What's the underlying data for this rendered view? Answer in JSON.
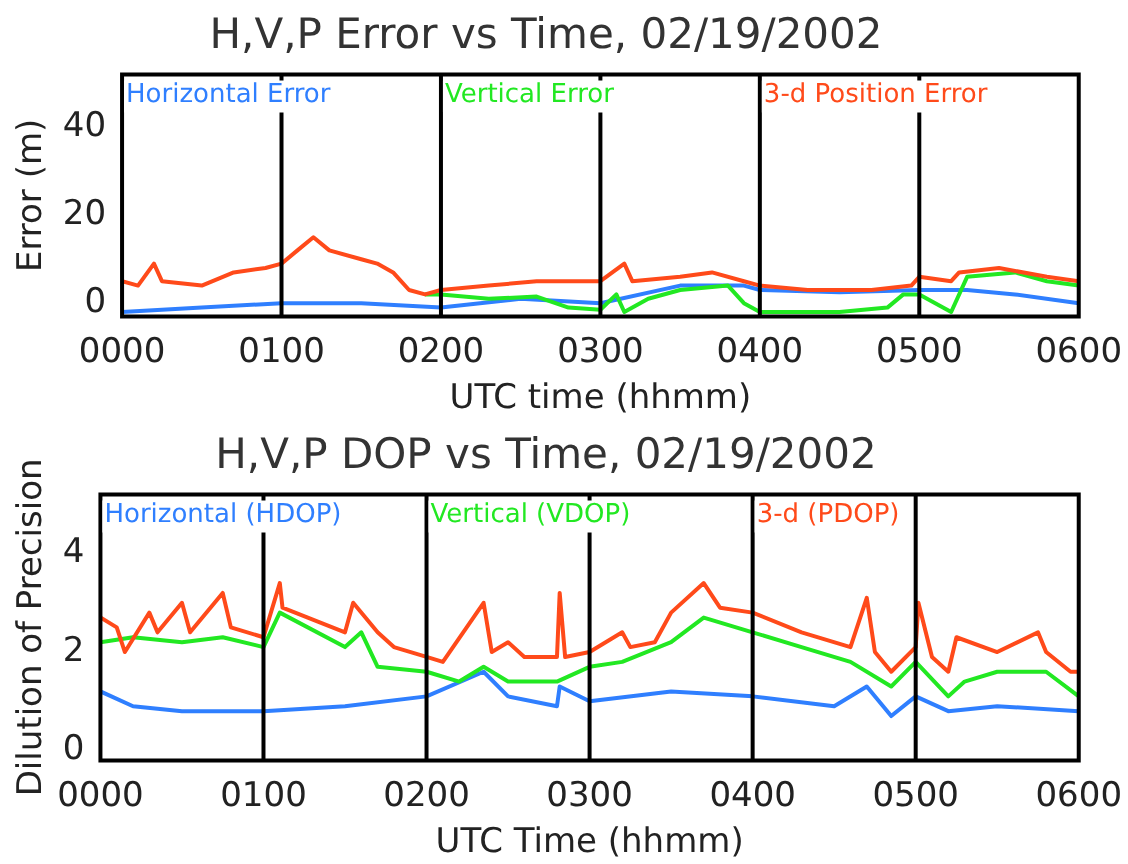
{
  "chart_data": [
    {
      "type": "line",
      "title": "H,V,P Error vs Time, 02/19/2002",
      "xlabel": "UTC time (hhmm)",
      "ylabel": "Error (m)",
      "xlim": [
        "2002-02-19T00:00",
        "2002-02-19T06:00"
      ],
      "xticks": [
        {
          "value": "2002-02-19T00:00",
          "label": "0000"
        },
        {
          "value": "2002-02-19T01:00",
          "label": "0100"
        },
        {
          "value": "2002-02-19T02:00",
          "label": "0200"
        },
        {
          "value": "2002-02-19T03:00",
          "label": "0300"
        },
        {
          "value": "2002-02-19T04:00",
          "label": "0400"
        },
        {
          "value": "2002-02-19T05:00",
          "label": "0500"
        },
        {
          "value": "2002-02-19T06:00",
          "label": "0600"
        }
      ],
      "ylim": [
        -3,
        52
      ],
      "yticks": [
        0,
        20,
        40
      ],
      "legend": "top",
      "grid": false,
      "ref_lines": [
        {
          "axis": "x",
          "value": "2002-02-19T01:00",
          "color": "#000000"
        },
        {
          "axis": "x",
          "value": "2002-02-19T02:00",
          "color": "#000000"
        },
        {
          "axis": "x",
          "value": "2002-02-19T03:00",
          "color": "#000000"
        },
        {
          "axis": "x",
          "value": "2002-02-19T04:00",
          "color": "#000000"
        },
        {
          "axis": "x",
          "value": "2002-02-19T05:00",
          "color": "#000000"
        }
      ],
      "series": [
        {
          "name": "Horizontal Error",
          "color": "#2f7fff",
          "x": [
            "2002-02-19T00:00",
            "2002-02-19T00:30",
            "2002-02-19T01:00",
            "2002-02-19T01:30",
            "2002-02-19T02:00",
            "2002-02-19T02:30",
            "2002-02-19T03:00",
            "2002-02-19T03:30",
            "2002-02-19T03:54",
            "2002-02-19T04:00",
            "2002-02-19T04:30",
            "2002-02-19T05:00",
            "2002-02-19T05:18",
            "2002-02-19T05:36",
            "2002-02-19T06:00"
          ],
          "values": [
            -2,
            -1,
            0,
            0,
            -1,
            1,
            0,
            4,
            4,
            3,
            2.5,
            3,
            3,
            2,
            0
          ]
        },
        {
          "name": "Vertical Error",
          "color": "#22e822",
          "x": [
            "2002-02-19T01:54",
            "2002-02-19T02:00",
            "2002-02-19T02:18",
            "2002-02-19T02:36",
            "2002-02-19T02:48",
            "2002-02-19T03:00",
            "2002-02-19T03:06",
            "2002-02-19T03:09",
            "2002-02-19T03:18",
            "2002-02-19T03:30",
            "2002-02-19T03:48",
            "2002-02-19T03:54",
            "2002-02-19T04:00",
            "2002-02-19T04:30",
            "2002-02-19T04:48",
            "2002-02-19T04:54",
            "2002-02-19T05:00",
            "2002-02-19T05:12",
            "2002-02-19T05:18",
            "2002-02-19T05:36",
            "2002-02-19T05:48",
            "2002-02-19T06:00"
          ],
          "values": [
            2,
            2,
            1,
            1.5,
            -1,
            -1.5,
            2,
            -2,
            1,
            3,
            4,
            0,
            -2,
            -2,
            -1,
            2,
            2,
            -2,
            6,
            7,
            5,
            4
          ]
        },
        {
          "name": "3-d Position Error",
          "color": "#ff4a1a",
          "x": [
            "2002-02-19T00:00",
            "2002-02-19T00:06",
            "2002-02-19T00:12",
            "2002-02-19T00:15",
            "2002-02-19T00:30",
            "2002-02-19T00:42",
            "2002-02-19T00:54",
            "2002-02-19T01:00",
            "2002-02-19T01:06",
            "2002-02-19T01:12",
            "2002-02-19T01:18",
            "2002-02-19T01:30",
            "2002-02-19T01:36",
            "2002-02-19T01:42",
            "2002-02-19T01:48",
            "2002-02-19T01:54",
            "2002-02-19T02:00",
            "2002-02-19T02:18",
            "2002-02-19T02:36",
            "2002-02-19T02:54",
            "2002-02-19T03:00",
            "2002-02-19T03:09",
            "2002-02-19T03:12",
            "2002-02-19T03:30",
            "2002-02-19T03:42",
            "2002-02-19T03:54",
            "2002-02-19T04:00",
            "2002-02-19T04:18",
            "2002-02-19T04:42",
            "2002-02-19T04:57",
            "2002-02-19T05:00",
            "2002-02-19T05:12",
            "2002-02-19T05:15",
            "2002-02-19T05:30",
            "2002-02-19T05:48",
            "2002-02-19T06:00"
          ],
          "values": [
            5,
            4,
            9,
            5,
            4,
            7,
            8,
            9,
            12,
            15,
            12,
            10,
            9,
            7,
            3,
            2,
            3,
            4,
            5,
            5,
            5,
            9,
            5,
            6,
            7,
            5,
            4,
            3,
            3,
            4,
            6,
            5,
            7,
            8,
            6,
            5
          ]
        }
      ]
    },
    {
      "type": "line",
      "title": "H,V,P DOP vs Time, 02/19/2002",
      "xlabel": "UTC Time (hhmm)",
      "ylabel": "Dilution of Precision",
      "xlim": [
        "2002-02-19T00:00",
        "2002-02-19T06:00"
      ],
      "xticks": [
        {
          "value": "2002-02-19T00:00",
          "label": "0000"
        },
        {
          "value": "2002-02-19T01:00",
          "label": "0100"
        },
        {
          "value": "2002-02-19T02:00",
          "label": "0200"
        },
        {
          "value": "2002-02-19T03:00",
          "label": "0300"
        },
        {
          "value": "2002-02-19T04:00",
          "label": "0400"
        },
        {
          "value": "2002-02-19T05:00",
          "label": "0500"
        },
        {
          "value": "2002-02-19T06:00",
          "label": "0600"
        }
      ],
      "ylim": [
        -0.2,
        5.2
      ],
      "yticks": [
        0,
        2,
        4
      ],
      "legend": "top",
      "grid": false,
      "ref_lines": [
        {
          "axis": "x",
          "value": "2002-02-19T01:00",
          "color": "#000000"
        },
        {
          "axis": "x",
          "value": "2002-02-19T02:00",
          "color": "#000000"
        },
        {
          "axis": "x",
          "value": "2002-02-19T03:00",
          "color": "#000000"
        },
        {
          "axis": "x",
          "value": "2002-02-19T04:00",
          "color": "#000000"
        },
        {
          "axis": "x",
          "value": "2002-02-19T05:00",
          "color": "#000000"
        }
      ],
      "series": [
        {
          "name": "Horizontal (HDOP)",
          "color": "#2f7fff",
          "x": [
            "2002-02-19T00:00",
            "2002-02-19T00:12",
            "2002-02-19T00:30",
            "2002-02-19T01:00",
            "2002-02-19T01:30",
            "2002-02-19T02:00",
            "2002-02-19T02:21",
            "2002-02-19T02:30",
            "2002-02-19T02:48",
            "2002-02-19T02:49",
            "2002-02-19T03:00",
            "2002-02-19T03:30",
            "2002-02-19T04:00",
            "2002-02-19T04:30",
            "2002-02-19T04:42",
            "2002-02-19T04:51",
            "2002-02-19T05:00",
            "2002-02-19T05:12",
            "2002-02-19T05:30",
            "2002-02-19T06:00"
          ],
          "values": [
            1.2,
            0.9,
            0.8,
            0.8,
            0.9,
            1.1,
            1.6,
            1.1,
            0.9,
            1.3,
            1,
            1.2,
            1.1,
            0.9,
            1.3,
            0.7,
            1.1,
            0.8,
            0.9,
            0.8
          ]
        },
        {
          "name": "Vertical (VDOP)",
          "color": "#22e822",
          "x": [
            "2002-02-19T00:00",
            "2002-02-19T00:12",
            "2002-02-19T00:30",
            "2002-02-19T00:45",
            "2002-02-19T01:00",
            "2002-02-19T01:06",
            "2002-02-19T01:30",
            "2002-02-19T01:36",
            "2002-02-19T01:42",
            "2002-02-19T02:00",
            "2002-02-19T02:12",
            "2002-02-19T02:21",
            "2002-02-19T02:30",
            "2002-02-19T02:48",
            "2002-02-19T03:00",
            "2002-02-19T03:12",
            "2002-02-19T03:30",
            "2002-02-19T03:42",
            "2002-02-19T04:00",
            "2002-02-19T04:18",
            "2002-02-19T04:36",
            "2002-02-19T04:51",
            "2002-02-19T05:00",
            "2002-02-19T05:12",
            "2002-02-19T05:18",
            "2002-02-19T05:30",
            "2002-02-19T05:48",
            "2002-02-19T06:00"
          ],
          "values": [
            2.2,
            2.3,
            2.2,
            2.3,
            2.1,
            2.8,
            2.1,
            2.4,
            1.7,
            1.6,
            1.4,
            1.7,
            1.4,
            1.4,
            1.7,
            1.8,
            2.2,
            2.7,
            2.4,
            2.1,
            1.8,
            1.3,
            1.8,
            1.1,
            1.4,
            1.6,
            1.6,
            1.1
          ]
        },
        {
          "name": "3-d (PDOP)",
          "color": "#ff4a1a",
          "x": [
            "2002-02-19T00:00",
            "2002-02-19T00:06",
            "2002-02-19T00:09",
            "2002-02-19T00:18",
            "2002-02-19T00:21",
            "2002-02-19T00:30",
            "2002-02-19T00:33",
            "2002-02-19T00:45",
            "2002-02-19T00:48",
            "2002-02-19T01:00",
            "2002-02-19T01:06",
            "2002-02-19T01:07",
            "2002-02-19T01:30",
            "2002-02-19T01:33",
            "2002-02-19T01:42",
            "2002-02-19T01:48",
            "2002-02-19T02:00",
            "2002-02-19T02:06",
            "2002-02-19T02:21",
            "2002-02-19T02:24",
            "2002-02-19T02:30",
            "2002-02-19T02:36",
            "2002-02-19T02:48",
            "2002-02-19T02:49",
            "2002-02-19T02:51",
            "2002-02-19T03:00",
            "2002-02-19T03:12",
            "2002-02-19T03:15",
            "2002-02-19T03:24",
            "2002-02-19T03:30",
            "2002-02-19T03:42",
            "2002-02-19T03:48",
            "2002-02-19T04:00",
            "2002-02-19T04:18",
            "2002-02-19T04:36",
            "2002-02-19T04:42",
            "2002-02-19T04:45",
            "2002-02-19T04:51",
            "2002-02-19T05:00",
            "2002-02-19T05:01",
            "2002-02-19T05:06",
            "2002-02-19T05:12",
            "2002-02-19T05:15",
            "2002-02-19T05:30",
            "2002-02-19T05:45",
            "2002-02-19T05:48",
            "2002-02-19T05:57",
            "2002-02-19T06:00"
          ],
          "values": [
            2.7,
            2.5,
            2,
            2.8,
            2.4,
            3,
            2.4,
            3.2,
            2.5,
            2.3,
            3.4,
            2.9,
            2.4,
            3,
            2.4,
            2.1,
            1.9,
            1.8,
            3,
            2,
            2.2,
            1.9,
            1.9,
            3.2,
            1.9,
            2,
            2.4,
            2.1,
            2.2,
            2.8,
            3.4,
            2.9,
            2.8,
            2.4,
            2.1,
            3.1,
            2,
            1.6,
            2.1,
            3,
            1.9,
            1.6,
            2.3,
            2,
            2.4,
            2,
            1.6,
            1.6
          ]
        }
      ]
    }
  ]
}
